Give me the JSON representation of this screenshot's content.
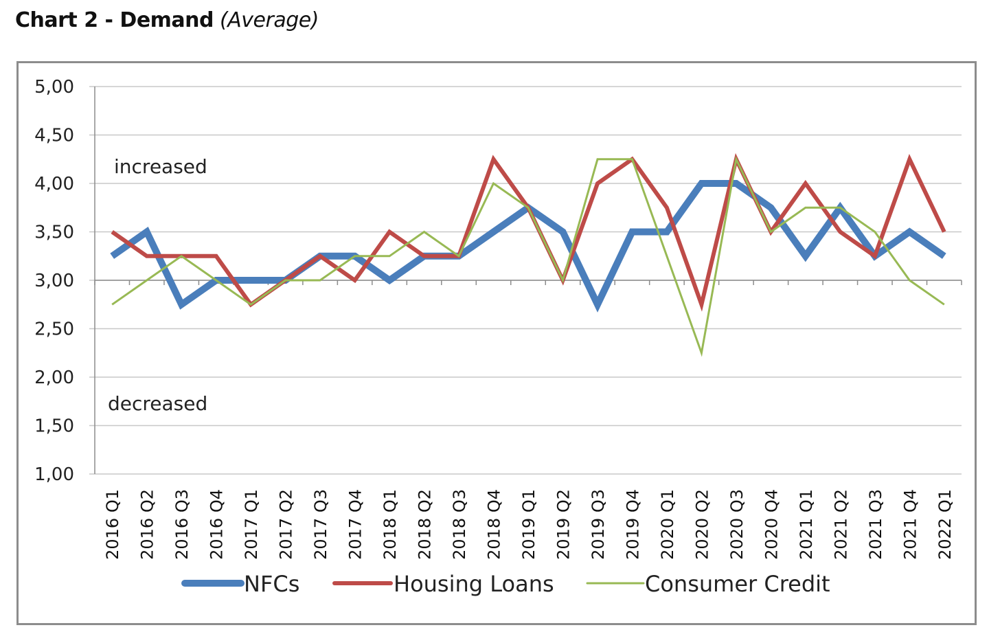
{
  "heading": {
    "main": "Chart 2 - Demand",
    "sub": "(Average)"
  },
  "chart_data": {
    "type": "line",
    "title": "Chart 2 - Demand (Average)",
    "xlabel": "",
    "ylabel": "",
    "ylim": [
      1.0,
      5.0
    ],
    "yticks": [
      "1,00",
      "1,50",
      "2,00",
      "2,50",
      "3,00",
      "3,50",
      "4,00",
      "4,50",
      "5,00"
    ],
    "grid": true,
    "legend": "bottom",
    "annotations": [
      "increased",
      "decreased"
    ],
    "x": [
      "2016 Q1",
      "2016 Q2",
      "2016 Q3",
      "2016 Q4",
      "2017 Q1",
      "2017 Q2",
      "2017 Q3",
      "2017 Q4",
      "2018 Q1",
      "2018 Q2",
      "2018 Q3",
      "2018 Q4",
      "2019 Q1",
      "2019 Q2",
      "2019 Q3",
      "2019 Q4",
      "2020 Q1",
      "2020 Q2",
      "2020 Q3",
      "2020 Q4",
      "2021 Q1",
      "2021 Q2",
      "2021 Q3",
      "2021 Q4",
      "2022 Q1"
    ],
    "series": [
      {
        "name": "NFCs",
        "color": "#4a7ebb",
        "values": [
          3.25,
          3.5,
          2.75,
          3.0,
          3.0,
          3.0,
          3.25,
          3.25,
          3.0,
          3.25,
          3.25,
          3.5,
          3.75,
          3.5,
          2.75,
          3.5,
          3.5,
          4.0,
          4.0,
          3.75,
          3.25,
          3.75,
          3.25,
          3.5,
          3.25
        ]
      },
      {
        "name": "Housing Loans",
        "color": "#be4b48",
        "values": [
          3.5,
          3.25,
          3.25,
          3.25,
          2.75,
          3.0,
          3.25,
          3.0,
          3.5,
          3.25,
          3.25,
          4.25,
          3.75,
          3.0,
          4.0,
          4.25,
          3.75,
          2.75,
          4.25,
          3.5,
          4.0,
          3.5,
          3.25,
          4.25,
          3.5
        ]
      },
      {
        "name": "Consumer Credit",
        "color": "#98b954",
        "values": [
          2.75,
          3.0,
          3.25,
          3.0,
          2.75,
          3.0,
          3.0,
          3.25,
          3.25,
          3.5,
          3.25,
          4.0,
          3.75,
          3.0,
          4.25,
          4.25,
          3.25,
          2.25,
          4.25,
          3.5,
          3.75,
          3.75,
          3.5,
          3.0,
          2.75
        ]
      }
    ]
  }
}
